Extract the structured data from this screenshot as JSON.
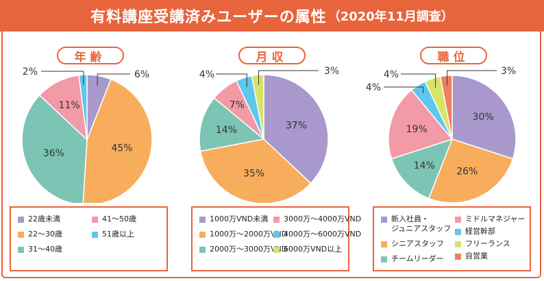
{
  "header": {
    "title": "有料講座受講済みユーザーの属性",
    "subtitle": "（2020年11月調査）"
  },
  "chart_data": [
    {
      "type": "pie",
      "title": "年齢",
      "slices": [
        {
          "label": "22歳未満",
          "value": 6,
          "color": "#a998cb"
        },
        {
          "label": "22～30歳",
          "value": 45,
          "color": "#f7ad5c"
        },
        {
          "label": "31～40歳",
          "value": 36,
          "color": "#7cc4b4"
        },
        {
          "label": "41～50歳",
          "value": 11,
          "color": "#f29aa6"
        },
        {
          "label": "51歳以上",
          "value": 2,
          "color": "#5ec7eb"
        }
      ],
      "data_labels": [
        "6%",
        "45%",
        "36%",
        "11%",
        "2%"
      ],
      "legend_columns": [
        [
          "22歳未満",
          "22～30歳",
          "31～40歳"
        ],
        [
          "41～50歳",
          "51歳以上"
        ]
      ]
    },
    {
      "type": "pie",
      "title": "月収",
      "slices": [
        {
          "label": "1000万VND未満",
          "value": 37,
          "color": "#a998cb"
        },
        {
          "label": "1000万～2000万VND",
          "value": 35,
          "color": "#f7ad5c"
        },
        {
          "label": "2000万～3000万VND",
          "value": 14,
          "color": "#7cc4b4"
        },
        {
          "label": "3000万～4000万VND",
          "value": 7,
          "color": "#f29aa6"
        },
        {
          "label": "4000万～6000万VND",
          "value": 4,
          "color": "#5ec7eb"
        },
        {
          "label": "6000万VND以上",
          "value": 3,
          "color": "#d6e36a"
        }
      ],
      "data_labels": [
        "37%",
        "35%",
        "14%",
        "7%",
        "4%",
        "3%"
      ],
      "legend_columns": [
        [
          "1000万VND未満",
          "1000万～2000万VND",
          "2000万～3000万VND"
        ],
        [
          "3000万～4000万VND",
          "4000万～6000万VND",
          "6000万VND以上"
        ]
      ]
    },
    {
      "type": "pie",
      "title": "職位",
      "slices": [
        {
          "label": "新入社員・ジュニアスタッフ",
          "value": 30,
          "color": "#a998cb"
        },
        {
          "label": "シニアスタッフ",
          "value": 26,
          "color": "#f7ad5c"
        },
        {
          "label": "チームリーダー",
          "value": 14,
          "color": "#7cc4b4"
        },
        {
          "label": "ミドルマネジャー",
          "value": 19,
          "color": "#f29aa6"
        },
        {
          "label": "経営幹部",
          "value": 4,
          "color": "#5ec7eb"
        },
        {
          "label": "フリーランス",
          "value": 4,
          "color": "#d6e36a"
        },
        {
          "label": "自営業",
          "value": 3,
          "color": "#ef7f5f"
        }
      ],
      "data_labels": [
        "30%",
        "26%",
        "14%",
        "19%",
        "4%",
        "4%",
        "3%"
      ],
      "legend_columns": [
        [
          "新入社員・\nジュニアスタッフ",
          "シニアスタッフ",
          "チームリーダー"
        ],
        [
          "ミドルマネジャー",
          "経営幹部",
          "フリーランス",
          "自営業"
        ]
      ]
    }
  ]
}
